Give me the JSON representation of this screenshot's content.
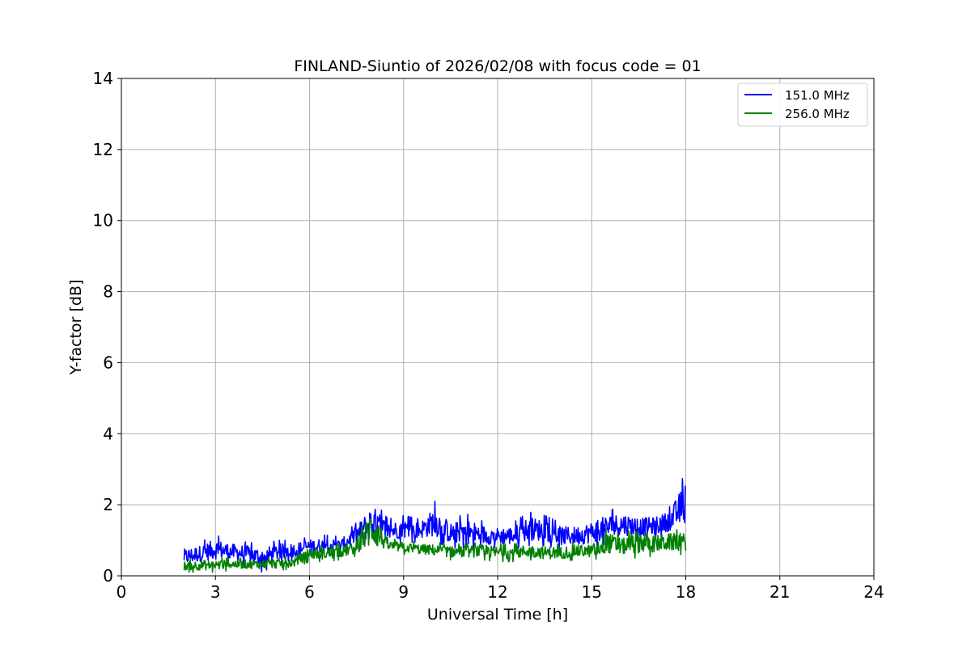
{
  "chart_data": {
    "type": "line",
    "title": "FINLAND-Siuntio of 2026/02/08 with focus code = 01",
    "xlabel": "Universal Time [h]",
    "ylabel": "Y-factor [dB]",
    "xlim": [
      0,
      24
    ],
    "ylim": [
      0,
      14
    ],
    "xticks": [
      0,
      3,
      6,
      9,
      12,
      15,
      18,
      21,
      24
    ],
    "yticks": [
      0,
      2,
      4,
      6,
      8,
      10,
      12,
      14
    ],
    "xtick_labels": [
      "0",
      "3",
      "6",
      "9",
      "12",
      "15",
      "18",
      "21",
      "24"
    ],
    "ytick_labels": [
      "0",
      "2",
      "4",
      "6",
      "8",
      "10",
      "12",
      "14"
    ],
    "grid": true,
    "legend_position": "top-right",
    "series": [
      {
        "name": "151.0 MHz",
        "color": "#0000ff",
        "x": [
          2.0,
          2.5,
          3.0,
          3.5,
          4.0,
          4.5,
          5.0,
          5.5,
          6.0,
          6.5,
          7.0,
          7.5,
          8.0,
          8.5,
          9.0,
          9.5,
          10.0,
          10.5,
          11.0,
          11.5,
          12.0,
          12.5,
          13.0,
          13.5,
          14.0,
          14.5,
          15.0,
          15.5,
          16.0,
          16.5,
          17.0,
          17.5,
          18.0
        ],
        "low": [
          0.2,
          0.3,
          0.35,
          0.35,
          0.3,
          0.1,
          0.35,
          0.45,
          0.55,
          0.55,
          0.6,
          0.8,
          0.85,
          0.9,
          0.95,
          0.95,
          0.95,
          0.8,
          0.75,
          0.75,
          0.8,
          0.75,
          0.85,
          0.85,
          0.75,
          0.75,
          0.8,
          0.9,
          1.0,
          1.0,
          1.05,
          1.15,
          1.2
        ],
        "high": [
          0.85,
          0.95,
          1.15,
          1.0,
          0.95,
          0.9,
          1.0,
          1.0,
          1.1,
          1.15,
          1.1,
          1.5,
          2.2,
          1.6,
          1.7,
          1.6,
          2.1,
          1.6,
          1.75,
          1.55,
          1.45,
          1.5,
          1.8,
          1.7,
          1.5,
          1.5,
          1.65,
          1.85,
          1.9,
          1.75,
          1.75,
          1.95,
          2.95
        ]
      },
      {
        "name": "256.0 MHz",
        "color": "#008000",
        "x": [
          2.0,
          2.5,
          3.0,
          3.5,
          4.0,
          4.5,
          5.0,
          5.5,
          6.0,
          6.5,
          7.0,
          7.5,
          8.0,
          8.5,
          9.0,
          9.5,
          10.0,
          10.5,
          11.0,
          11.5,
          12.0,
          12.5,
          13.0,
          13.5,
          14.0,
          14.5,
          15.0,
          15.5,
          16.0,
          16.5,
          17.0,
          17.5,
          18.0
        ],
        "low": [
          0.1,
          0.1,
          0.1,
          0.15,
          0.15,
          0.15,
          0.15,
          0.2,
          0.4,
          0.4,
          0.45,
          0.55,
          0.6,
          0.65,
          0.6,
          0.55,
          0.5,
          0.45,
          0.45,
          0.45,
          0.4,
          0.4,
          0.45,
          0.4,
          0.4,
          0.45,
          0.45,
          0.5,
          0.5,
          0.5,
          0.55,
          0.6,
          0.6
        ],
        "high": [
          0.45,
          0.5,
          0.5,
          0.5,
          0.5,
          0.5,
          0.55,
          0.55,
          0.85,
          0.85,
          0.9,
          1.05,
          2.15,
          1.05,
          1.0,
          0.95,
          0.95,
          0.9,
          0.9,
          0.95,
          0.9,
          0.9,
          0.95,
          0.9,
          0.9,
          0.95,
          0.95,
          1.35,
          1.15,
          1.45,
          1.25,
          1.3,
          1.3
        ]
      }
    ]
  }
}
